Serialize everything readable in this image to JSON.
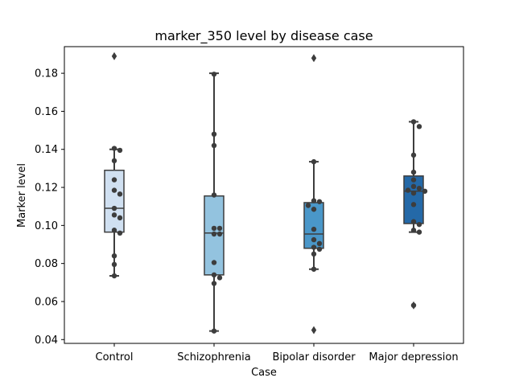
{
  "chart_data": {
    "type": "box",
    "title": "marker_350 level by disease case",
    "xlabel": "Case",
    "ylabel": "Marker level",
    "ylim": [
      0.038,
      0.194
    ],
    "yticks": [
      "0.04",
      "0.06",
      "0.08",
      "0.10",
      "0.12",
      "0.14",
      "0.16",
      "0.18"
    ],
    "grid": false,
    "categories": [
      "Control",
      "Schizophrenia",
      "Bipolar disorder",
      "Major depression"
    ],
    "box_colors": [
      "#d0e0f1",
      "#93c3df",
      "#4a97c9",
      "#2469a8"
    ],
    "boxes": [
      {
        "q1": 0.0965,
        "median": 0.109,
        "q3": 0.129,
        "whisker_low": 0.0735,
        "whisker_high": 0.14,
        "outliers": [
          0.189
        ]
      },
      {
        "q1": 0.074,
        "median": 0.096,
        "q3": 0.1155,
        "whisker_low": 0.0445,
        "whisker_high": 0.18,
        "outliers": []
      },
      {
        "q1": 0.088,
        "median": 0.0955,
        "q3": 0.112,
        "whisker_low": 0.077,
        "whisker_high": 0.1335,
        "outliers": [
          0.188,
          0.045
        ]
      },
      {
        "q1": 0.101,
        "median": 0.118,
        "q3": 0.126,
        "whisker_low": 0.0965,
        "whisker_high": 0.1545,
        "outliers": [
          0.058
        ]
      }
    ],
    "points": [
      [
        0.1405,
        0.1395,
        0.134,
        0.124,
        0.1185,
        0.1165,
        0.109,
        0.1055,
        0.104,
        0.0975,
        0.096,
        0.084,
        0.0795,
        0.0735
      ],
      [
        0.1795,
        0.148,
        0.142,
        0.116,
        0.0985,
        0.0985,
        0.0955,
        0.0955,
        0.0805,
        0.074,
        0.0725,
        0.0695,
        0.0445
      ],
      [
        0.1335,
        0.113,
        0.1125,
        0.1105,
        0.1085,
        0.098,
        0.0925,
        0.0905,
        0.0885,
        0.0875,
        0.085,
        0.077
      ],
      [
        0.1545,
        0.152,
        0.137,
        0.128,
        0.124,
        0.1205,
        0.1195,
        0.1185,
        0.118,
        0.117,
        0.111,
        0.102,
        0.1005,
        0.0975,
        0.0965,
        0.058
      ]
    ]
  }
}
